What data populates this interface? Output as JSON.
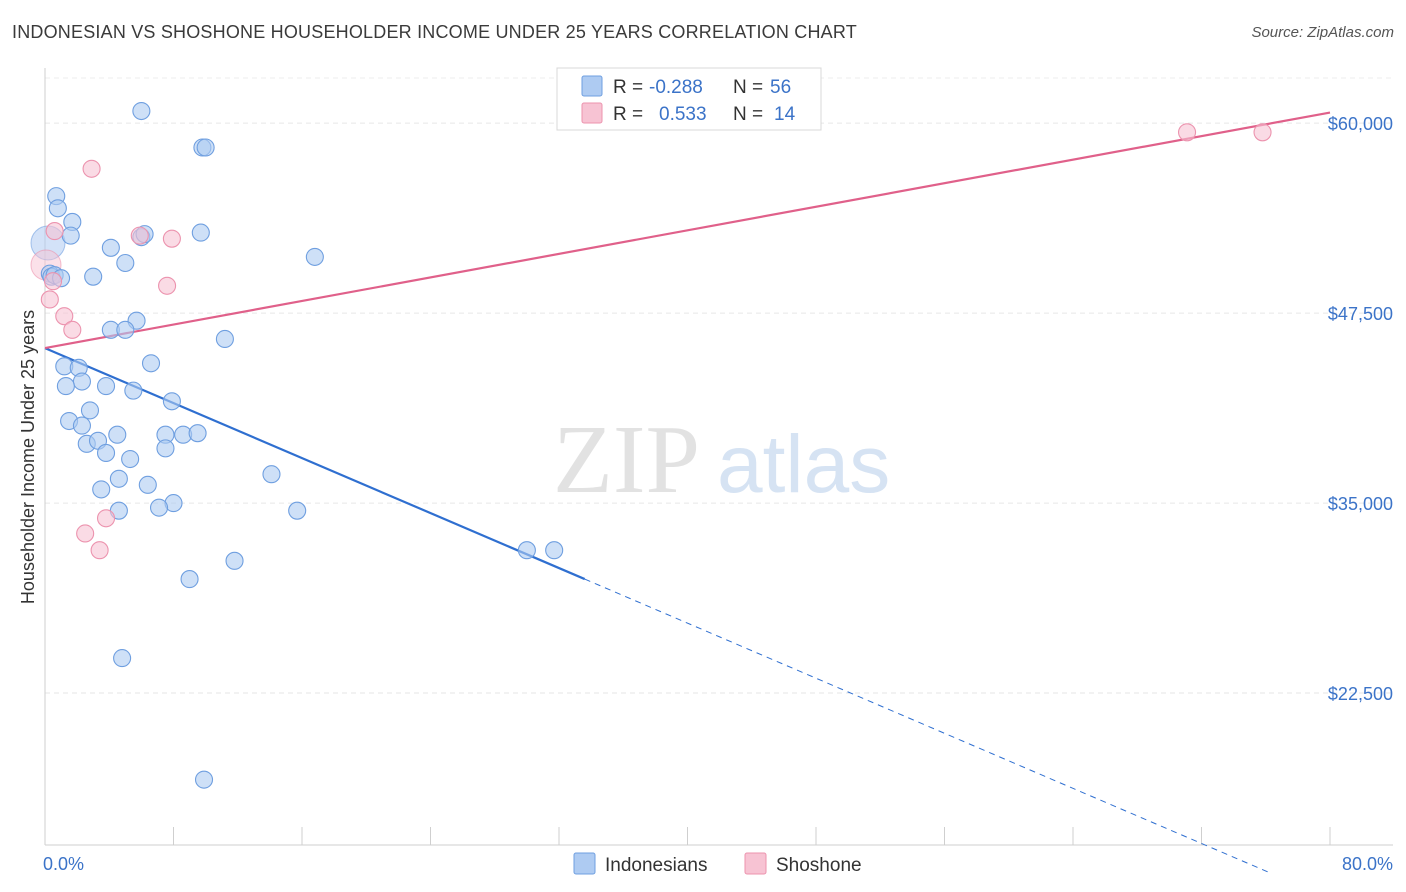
{
  "title": "INDONESIAN VS SHOSHONE HOUSEHOLDER INCOME UNDER 25 YEARS CORRELATION CHART",
  "source": "Source: ZipAtlas.com",
  "watermark": {
    "zip": "ZIP",
    "atlas": "atlas"
  },
  "colors": {
    "indonesian_fill": "#aecbf2",
    "indonesian_stroke": "#6f9fe0",
    "indonesian_line": "#2f6fd0",
    "shoshone_fill": "#f7c3d3",
    "shoshone_stroke": "#ec93ae",
    "shoshone_line": "#e0608a",
    "tick_label": "#3b73c8"
  },
  "legend": {
    "rows": [
      {
        "r_label": "R =",
        "r_value": "-0.288",
        "n_label": "N =",
        "n_value": "56"
      },
      {
        "r_label": "R =",
        "r_value": "0.533",
        "n_label": "N =",
        "n_value": "14"
      }
    ]
  },
  "chart_data": {
    "type": "scatter",
    "title": "INDONESIAN VS SHOSHONE HOUSEHOLDER INCOME UNDER 25 YEARS CORRELATION CHART",
    "xlabel": "",
    "ylabel": "Householder Income Under 25 years",
    "xlim": [
      0,
      80
    ],
    "ylim": [
      12500,
      63500
    ],
    "x_tick_labels": [
      "0.0%",
      "80.0%"
    ],
    "y_ticks": [
      {
        "value": 60000,
        "label": "$60,000"
      },
      {
        "value": 47500,
        "label": "$47,500"
      },
      {
        "value": 35000,
        "label": "$35,000"
      },
      {
        "value": 22500,
        "label": "$22,500"
      }
    ],
    "series": [
      {
        "name": "Indonesians",
        "r": -0.288,
        "n": 56,
        "trend": {
          "x0": 0,
          "y0": 45200,
          "x1_solid": 33.6,
          "y1_solid": 30000,
          "x1_dashed": 76.2,
          "y1_dashed": 10700
        },
        "points": [
          [
            6.0,
            60800
          ],
          [
            9.8,
            58400
          ],
          [
            10.0,
            58400
          ],
          [
            0.7,
            55200
          ],
          [
            0.8,
            54400
          ],
          [
            1.7,
            53500
          ],
          [
            1.6,
            52600
          ],
          [
            6.0,
            52500
          ],
          [
            6.2,
            52700
          ],
          [
            9.7,
            52800
          ],
          [
            4.1,
            51800
          ],
          [
            16.8,
            51200
          ],
          [
            5.0,
            50800
          ],
          [
            0.3,
            50100
          ],
          [
            0.4,
            49900
          ],
          [
            0.6,
            50000
          ],
          [
            1.0,
            49800
          ],
          [
            3.0,
            49900
          ],
          [
            5.7,
            47000
          ],
          [
            4.1,
            46400
          ],
          [
            5.0,
            46400
          ],
          [
            11.2,
            45800
          ],
          [
            6.6,
            44200
          ],
          [
            1.2,
            44000
          ],
          [
            2.1,
            43900
          ],
          [
            2.3,
            43000
          ],
          [
            1.3,
            42700
          ],
          [
            3.8,
            42700
          ],
          [
            5.5,
            42400
          ],
          [
            7.9,
            41700
          ],
          [
            2.8,
            41100
          ],
          [
            1.5,
            40400
          ],
          [
            2.3,
            40100
          ],
          [
            4.5,
            39500
          ],
          [
            7.5,
            39500
          ],
          [
            8.6,
            39500
          ],
          [
            9.5,
            39600
          ],
          [
            2.6,
            38900
          ],
          [
            3.3,
            39100
          ],
          [
            7.5,
            38600
          ],
          [
            3.8,
            38300
          ],
          [
            5.3,
            37900
          ],
          [
            14.1,
            36900
          ],
          [
            4.6,
            36600
          ],
          [
            6.4,
            36200
          ],
          [
            3.5,
            35900
          ],
          [
            4.6,
            34500
          ],
          [
            8.0,
            35000
          ],
          [
            7.1,
            34700
          ],
          [
            15.7,
            34500
          ],
          [
            31.7,
            31900
          ],
          [
            11.8,
            31200
          ],
          [
            9.0,
            30000
          ],
          [
            4.8,
            24800
          ],
          [
            9.9,
            16800
          ],
          [
            30.0,
            31900
          ]
        ]
      },
      {
        "name": "Shoshone",
        "r": 0.533,
        "n": 14,
        "trend": {
          "x0": 0,
          "y0": 45200,
          "x1": 80,
          "y1": 60700
        },
        "points": [
          [
            2.9,
            57000
          ],
          [
            0.6,
            52900
          ],
          [
            5.9,
            52600
          ],
          [
            7.9,
            52400
          ],
          [
            0.5,
            49600
          ],
          [
            7.6,
            49300
          ],
          [
            0.3,
            48400
          ],
          [
            1.2,
            47300
          ],
          [
            1.7,
            46400
          ],
          [
            3.8,
            34000
          ],
          [
            2.5,
            33000
          ],
          [
            3.4,
            31900
          ],
          [
            71.1,
            59400
          ],
          [
            75.8,
            59400
          ]
        ]
      }
    ]
  }
}
